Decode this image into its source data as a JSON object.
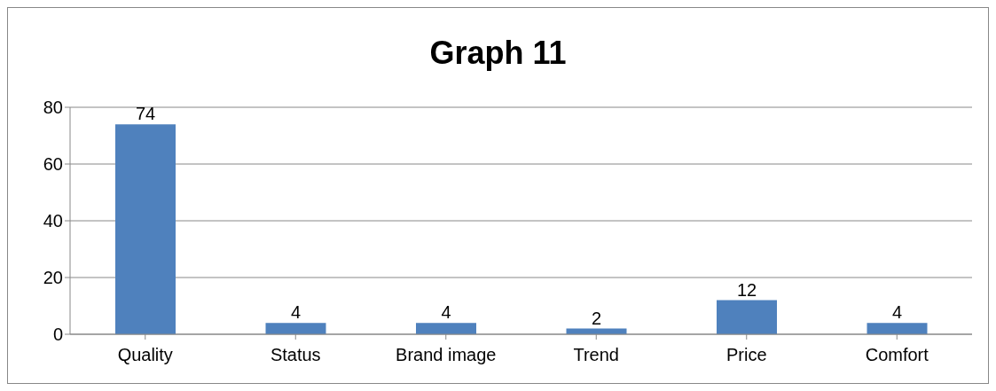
{
  "chart_data": {
    "type": "bar",
    "title": "Graph 11",
    "categories": [
      "Quality",
      "Status",
      "Brand image",
      "Trend",
      "Price",
      "Comfort"
    ],
    "values": [
      74,
      4,
      4,
      2,
      12,
      4
    ],
    "color": "#4f81bd",
    "ylim": [
      0,
      80
    ],
    "yticks": [
      0,
      20,
      40,
      60,
      80
    ],
    "grid": "y",
    "data_labels": true
  }
}
